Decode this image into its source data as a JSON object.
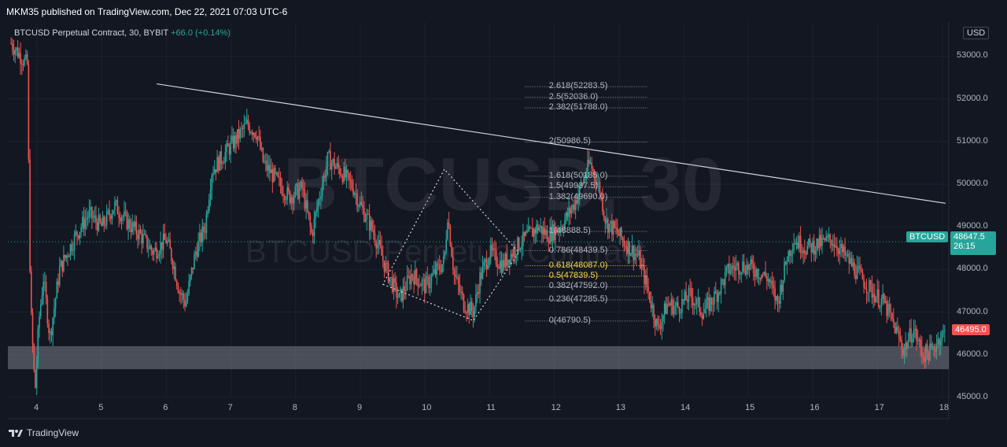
{
  "header": {
    "published": "MKM35 published on TradingView.com, Dec 22, 2021 07:03 UTC-6"
  },
  "symbol": {
    "name": "BTCUSD Perpetual Contract, 30, BYBIT",
    "change": "+66.0 (+0.14%)"
  },
  "watermark": {
    "ticker": "BTCUSD, 30",
    "description": "BTCUSD Perpetual Contract"
  },
  "currency_button": "USD",
  "last_price_label": "BTCUSD",
  "last_price": "48647.5",
  "countdown": "26:15",
  "marked_price": "46495.0",
  "footer": {
    "brand": "TradingView"
  },
  "colors": {
    "background": "#131722",
    "up": "#26a69a",
    "down": "#ef5350",
    "fib_gold": "#f7d64a",
    "support_zone": "#787b86"
  },
  "chart_data": {
    "type": "candlestick",
    "x_tick_labels": [
      "4",
      "5",
      "6",
      "7",
      "8",
      "9",
      "10",
      "11",
      "12",
      "13",
      "14",
      "15",
      "16",
      "17",
      "18"
    ],
    "y_tick_labels": [
      "53000.0",
      "52000.0",
      "51000.0",
      "50000.0",
      "49000.0",
      "48000.0",
      "47000.0",
      "46000.0",
      "45000.0"
    ],
    "ylim": [
      44980,
      53800
    ],
    "xlim": [
      3.55,
      18.1
    ],
    "price_path": [
      [
        3.6,
        53300
      ],
      [
        3.75,
        53000
      ],
      [
        3.85,
        52800
      ],
      [
        3.9,
        47200
      ],
      [
        3.97,
        45100
      ],
      [
        4.03,
        46800
      ],
      [
        4.1,
        47800
      ],
      [
        4.2,
        46400
      ],
      [
        4.35,
        48000
      ],
      [
        4.6,
        48800
      ],
      [
        4.8,
        49300
      ],
      [
        5.0,
        49000
      ],
      [
        5.2,
        49500
      ],
      [
        5.4,
        49100
      ],
      [
        5.6,
        48800
      ],
      [
        5.8,
        48400
      ],
      [
        6.0,
        48700
      ],
      [
        6.1,
        48200
      ],
      [
        6.2,
        47500
      ],
      [
        6.3,
        47200
      ],
      [
        6.45,
        48400
      ],
      [
        6.6,
        49000
      ],
      [
        6.7,
        50300
      ],
      [
        6.9,
        50700
      ],
      [
        7.1,
        51100
      ],
      [
        7.25,
        51400
      ],
      [
        7.4,
        51200
      ],
      [
        7.5,
        50500
      ],
      [
        7.7,
        50100
      ],
      [
        7.9,
        49700
      ],
      [
        8.1,
        49900
      ],
      [
        8.25,
        48800
      ],
      [
        8.35,
        49600
      ],
      [
        8.5,
        50600
      ],
      [
        8.7,
        50300
      ],
      [
        8.9,
        49900
      ],
      [
        9.0,
        49500
      ],
      [
        9.2,
        48900
      ],
      [
        9.4,
        48000
      ],
      [
        9.6,
        47300
      ],
      [
        9.8,
        47900
      ],
      [
        10.0,
        47600
      ],
      [
        10.15,
        47900
      ],
      [
        10.3,
        48200
      ],
      [
        10.35,
        49300
      ],
      [
        10.45,
        47900
      ],
      [
        10.6,
        47200
      ],
      [
        10.75,
        47000
      ],
      [
        10.85,
        47800
      ],
      [
        11.0,
        48400
      ],
      [
        11.2,
        48100
      ],
      [
        11.4,
        48500
      ],
      [
        11.6,
        48800
      ],
      [
        11.75,
        49000
      ],
      [
        11.9,
        48800
      ],
      [
        12.1,
        49000
      ],
      [
        12.3,
        49500
      ],
      [
        12.45,
        50100
      ],
      [
        12.55,
        50500
      ],
      [
        12.7,
        49900
      ],
      [
        12.8,
        49100
      ],
      [
        12.95,
        48900
      ],
      [
        13.1,
        48600
      ],
      [
        13.3,
        48300
      ],
      [
        13.45,
        47500
      ],
      [
        13.6,
        46600
      ],
      [
        13.75,
        47200
      ],
      [
        13.9,
        47100
      ],
      [
        14.1,
        47400
      ],
      [
        14.3,
        47000
      ],
      [
        14.5,
        47400
      ],
      [
        14.7,
        48000
      ],
      [
        14.9,
        48100
      ],
      [
        15.1,
        48000
      ],
      [
        15.3,
        47800
      ],
      [
        15.45,
        47200
      ],
      [
        15.6,
        48300
      ],
      [
        15.7,
        48700
      ],
      [
        15.9,
        48500
      ],
      [
        16.1,
        48600
      ],
      [
        16.3,
        48700
      ],
      [
        16.5,
        48300
      ],
      [
        16.7,
        47900
      ],
      [
        16.9,
        47500
      ],
      [
        17.1,
        47200
      ],
      [
        17.25,
        46700
      ],
      [
        17.4,
        46100
      ],
      [
        17.55,
        46600
      ],
      [
        17.7,
        46000
      ],
      [
        17.85,
        46100
      ],
      [
        17.95,
        46400
      ],
      [
        18.05,
        46500
      ]
    ],
    "trendline": {
      "from": [
        5.85,
        52350
      ],
      "to": [
        18.05,
        49550
      ]
    },
    "triangle_pattern": [
      [
        9.35,
        47650
      ],
      [
        10.3,
        50350
      ],
      [
        10.75,
        46800
      ]
    ],
    "triangle_pattern_edge": [
      [
        9.35,
        47650
      ],
      [
        10.75,
        46800
      ],
      [
        11.45,
        48400
      ],
      [
        10.3,
        50350
      ]
    ],
    "fib_range": {
      "x_start": 11.55,
      "x_end": 13.45
    },
    "fib_levels": [
      {
        "label": "2.618(52283.5)",
        "value": 52283.5,
        "highlight": false
      },
      {
        "label": "2.5(52036.0)",
        "value": 52036.0,
        "highlight": false
      },
      {
        "label": "2.382(51788.0)",
        "value": 51788.0,
        "highlight": false
      },
      {
        "label": "2(50986.5)",
        "value": 50986.5,
        "highlight": false
      },
      {
        "label": "1.618(50185.0)",
        "value": 50185.0,
        "highlight": false
      },
      {
        "label": "1.5(49937.5)",
        "value": 49937.5,
        "highlight": false
      },
      {
        "label": "1.382(49690.0)",
        "value": 49690.0,
        "highlight": false
      },
      {
        "label": "1(48888.5)",
        "value": 48888.5,
        "highlight": false
      },
      {
        "label": "0.786(48439.5)",
        "value": 48439.5,
        "highlight": false
      },
      {
        "label": "0.618(48087.0)",
        "value": 48087.0,
        "highlight": true
      },
      {
        "label": "0.5(47839.5)",
        "value": 47839.5,
        "highlight": true
      },
      {
        "label": "0.382(47592.0)",
        "value": 47592.0,
        "highlight": false
      },
      {
        "label": "0.236(47285.5)",
        "value": 47285.5,
        "highlight": false
      },
      {
        "label": "0(46790.5)",
        "value": 46790.5,
        "highlight": false
      }
    ],
    "support_zone": {
      "low": 45660,
      "high": 46200
    },
    "last_price_line": 48647.5
  }
}
